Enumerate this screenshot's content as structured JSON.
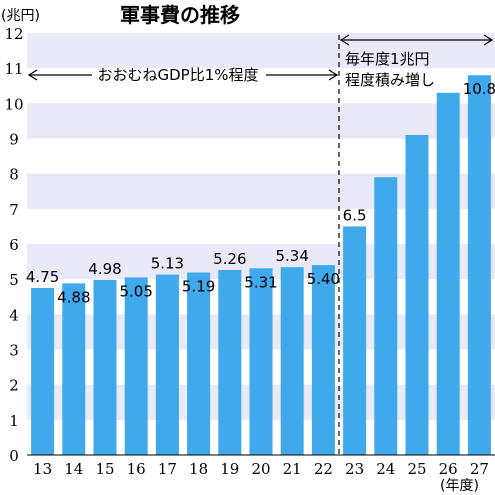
{
  "chart_data": {
    "type": "bar",
    "title": "軍事費の推移",
    "ylabel": "(兆円)",
    "xlabel": "(年度)",
    "categories": [
      "13",
      "14",
      "15",
      "16",
      "17",
      "18",
      "19",
      "20",
      "21",
      "22",
      "23",
      "24",
      "25",
      "26",
      "27"
    ],
    "values": [
      4.75,
      4.88,
      4.98,
      5.05,
      5.13,
      5.19,
      5.26,
      5.31,
      5.34,
      5.4,
      6.5,
      7.9,
      9.1,
      10.3,
      10.8
    ],
    "data_labels": [
      "4.75",
      "4.88",
      "4.98",
      "5.05",
      "5.13",
      "5.19",
      "5.26",
      "5.31",
      "5.34",
      "5.40",
      "6.5",
      "",
      "",
      "",
      "10.8"
    ],
    "yticks": [
      "0",
      "1",
      "2",
      "3",
      "4",
      "5",
      "6",
      "7",
      "8",
      "9",
      "10",
      "11",
      "12"
    ],
    "ylim": [
      0,
      12
    ],
    "bar_color": "#3fa9ec",
    "band_color": "#e9e9f7",
    "annotations": {
      "period1": "おおむねGDP比1%程度",
      "period2_line1": "毎年度1兆円",
      "period2_line2": "程度積み増し"
    }
  }
}
